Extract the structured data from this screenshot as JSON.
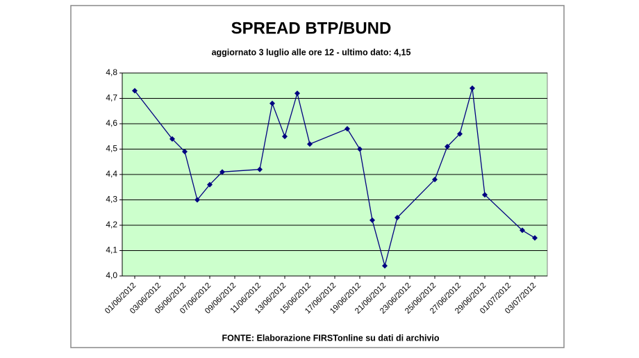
{
  "chart_data": {
    "type": "line",
    "title": "SPREAD BTP/BUND",
    "subtitle": "aggiornato 3 luglio alle ore 12 - ultimo dato: 4,15",
    "source": "FONTE: Elaborazione FIRSTonline su dati di archivio",
    "x": [
      "01/06/2012",
      "04/06/2012",
      "05/06/2012",
      "06/06/2012",
      "07/06/2012",
      "08/06/2012",
      "11/06/2012",
      "12/06/2012",
      "13/06/2012",
      "14/06/2012",
      "15/06/2012",
      "18/06/2012",
      "19/06/2012",
      "20/06/2012",
      "21/06/2012",
      "22/06/2012",
      "25/06/2012",
      "26/06/2012",
      "27/06/2012",
      "28/06/2012",
      "29/06/2012",
      "02/07/2012",
      "03/07/2012"
    ],
    "series": [
      {
        "name": "Spread",
        "color": "#000080",
        "values": [
          4.73,
          4.54,
          4.49,
          4.3,
          4.36,
          4.41,
          4.42,
          4.68,
          4.55,
          4.72,
          4.52,
          4.58,
          4.5,
          4.22,
          4.04,
          4.23,
          4.38,
          4.51,
          4.56,
          4.74,
          4.32,
          4.18,
          4.15
        ]
      }
    ],
    "xlim": [
      "31/05/2012",
      "04/07/2012"
    ],
    "xticks": [
      "01/06/2012",
      "03/06/2012",
      "05/06/2012",
      "07/06/2012",
      "09/06/2012",
      "11/06/2012",
      "13/06/2012",
      "15/06/2012",
      "17/06/2012",
      "19/06/2012",
      "21/06/2012",
      "23/06/2012",
      "25/06/2012",
      "27/06/2012",
      "29/06/2012",
      "01/07/2012",
      "03/07/2012"
    ],
    "ylim": [
      4.0,
      4.8
    ],
    "yticks": [
      {
        "value": 4.0,
        "label": "4,0"
      },
      {
        "value": 4.1,
        "label": "4,1"
      },
      {
        "value": 4.2,
        "label": "4,2"
      },
      {
        "value": 4.3,
        "label": "4,3"
      },
      {
        "value": 4.4,
        "label": "4,4"
      },
      {
        "value": 4.5,
        "label": "4,5"
      },
      {
        "value": 4.6,
        "label": "4,6"
      },
      {
        "value": 4.7,
        "label": "4,7"
      },
      {
        "value": 4.8,
        "label": "4,8"
      }
    ],
    "grid": true,
    "plot_background": "#ccffcc"
  }
}
